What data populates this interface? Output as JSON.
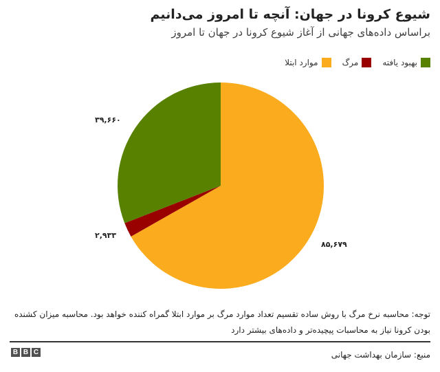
{
  "header": {
    "title": "شیوع کرونا در جهان: آنچه تا امروز می‌دانیم",
    "subtitle": "براساس داده‌های جهانی از آغاز شیوع کرونا در جهان تا امروز"
  },
  "legend": [
    {
      "label": "بهبود یافته",
      "color": "#588100"
    },
    {
      "label": "مرگ",
      "color": "#990000"
    },
    {
      "label": "موارد ابتلا",
      "color": "#FAAB1E"
    }
  ],
  "slice_labels": {
    "confirmed": "۸۵,۶۷۹",
    "deaths": "۲,۹۳۳",
    "recovered": "۳۹,۶۶۰"
  },
  "footer": {
    "note": "توجه: محاسبه نرخ مرگ با روش ساده تقسیم تعداد موارد مرگ بر موارد ابتلا گمراه کننده خواهد بود. محاسبه میزان کشنده بودن کرونا نیاز به محاسبات پیچیده‌تر و داده‌های بیشتر دارد",
    "source": "منبع: سازمان بهداشت جهانی",
    "logo": [
      "B",
      "B",
      "C"
    ]
  },
  "chart_data": {
    "type": "pie",
    "title": "شیوع کرونا در جهان: آنچه تا امروز می‌دانیم",
    "subtitle": "براساس داده‌های جهانی از آغاز شیوع کرونا در جهان تا امروز",
    "categories": [
      "موارد ابتلا",
      "مرگ",
      "بهبود یافته"
    ],
    "values": [
      85679,
      2933,
      39660
    ],
    "colors": [
      "#FAAB1E",
      "#990000",
      "#588100"
    ],
    "value_labels": [
      "۸۵,۶۷۹",
      "۲,۹۳۳",
      "۳۹,۶۶۰"
    ],
    "start_angle": "top, clockwise",
    "legend_position": "top-right"
  }
}
